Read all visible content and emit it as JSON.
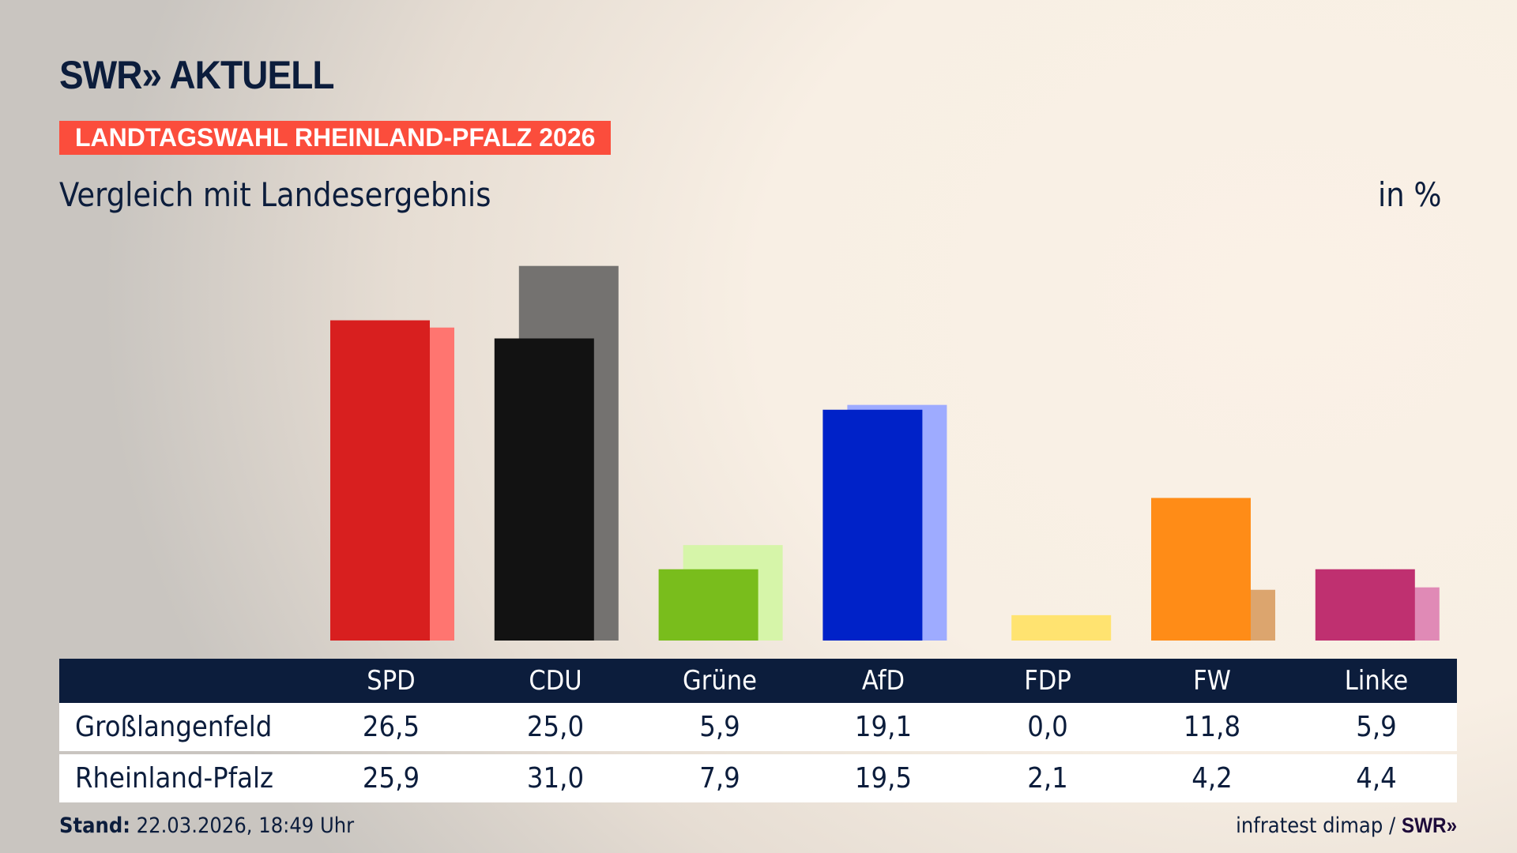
{
  "header": {
    "logo": "SWR» AKTUELL",
    "banner": "LANDTAGSWAHL RHEINLAND-PFALZ 2026",
    "subtitle": "Vergleich mit Landesergebnis",
    "unit": "in %"
  },
  "chart_data": {
    "type": "bar",
    "title": "Vergleich mit Landesergebnis",
    "ylabel": "in %",
    "ylim": [
      0,
      32
    ],
    "grid": false,
    "categories": [
      "SPD",
      "CDU",
      "Grüne",
      "AfD",
      "FDP",
      "FW",
      "Linke"
    ],
    "series": [
      {
        "name": "Großlangenfeld",
        "values": [
          "26,5",
          "25,0",
          "5,9",
          "19,1",
          "0,0",
          "11,8",
          "5,9"
        ],
        "colors": [
          "#d81f1f",
          "#121212",
          "#79bd1c",
          "#0022c8",
          "#ffe16e",
          "#ff8c17",
          "#bf3070"
        ]
      },
      {
        "name": "Rheinland-Pfalz",
        "values": [
          "25,9",
          "31,0",
          "7,9",
          "19,5",
          "2,1",
          "4,2",
          "4,4"
        ],
        "colors": [
          "#ff7570",
          "#747270",
          "#d6f5a9",
          "#9eabff",
          "#ffe370",
          "#dca56e",
          "#e08ab6"
        ]
      }
    ]
  },
  "footer": {
    "stand_label": "Stand:",
    "stand_value": " 22.03.2026, 18:49 Uhr",
    "source": "infratest dimap / ",
    "source_logo": "SWR»"
  },
  "colors": {
    "navy": "#0c1d3c",
    "banner": "#fb4d3c"
  }
}
